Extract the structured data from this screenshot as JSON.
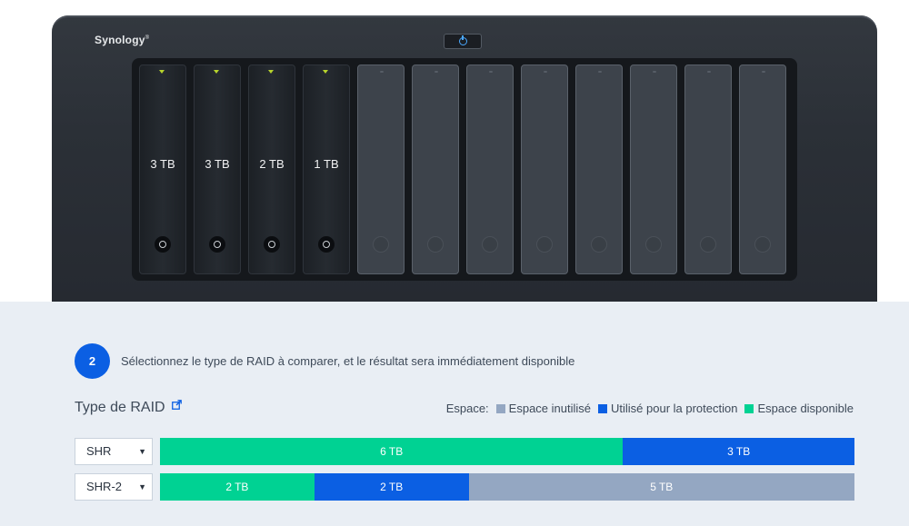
{
  "device": {
    "logo": "Synology",
    "logo_mark": "®",
    "drives": [
      {
        "capacity": "3 TB",
        "installed": true
      },
      {
        "capacity": "3 TB",
        "installed": true
      },
      {
        "capacity": "2 TB",
        "installed": true
      },
      {
        "capacity": "1 TB",
        "installed": true
      },
      {
        "capacity": "",
        "installed": false
      },
      {
        "capacity": "",
        "installed": false
      },
      {
        "capacity": "",
        "installed": false
      },
      {
        "capacity": "",
        "installed": false
      },
      {
        "capacity": "",
        "installed": false
      },
      {
        "capacity": "",
        "installed": false
      },
      {
        "capacity": "",
        "installed": false
      },
      {
        "capacity": "",
        "installed": false
      }
    ]
  },
  "step": {
    "number": "2",
    "text": "Sélectionnez le type de RAID à comparer, et le résultat sera immédiatement disponible"
  },
  "raid_section": {
    "title": "Type de RAID",
    "link_icon": "external-link-icon"
  },
  "legend": {
    "label": "Espace:",
    "items": [
      {
        "label": "Espace inutilisé",
        "color": "#94a7c2"
      },
      {
        "label": "Utilisé pour la protection",
        "color": "#0b5fe3"
      },
      {
        "label": "Espace disponible",
        "color": "#00d293"
      }
    ]
  },
  "rows": [
    {
      "raid_type": "SHR",
      "segments": [
        {
          "label": "6 TB",
          "tb": 6,
          "kind": "available",
          "color": "#00d293"
        },
        {
          "label": "3 TB",
          "tb": 3,
          "kind": "protection",
          "color": "#0b5fe3"
        }
      ]
    },
    {
      "raid_type": "SHR-2",
      "segments": [
        {
          "label": "2 TB",
          "tb": 2,
          "kind": "available",
          "color": "#00d293"
        },
        {
          "label": "2 TB",
          "tb": 2,
          "kind": "protection",
          "color": "#0b5fe3"
        },
        {
          "label": "5 TB",
          "tb": 5,
          "kind": "unused",
          "color": "#94a7c2"
        }
      ]
    }
  ]
}
